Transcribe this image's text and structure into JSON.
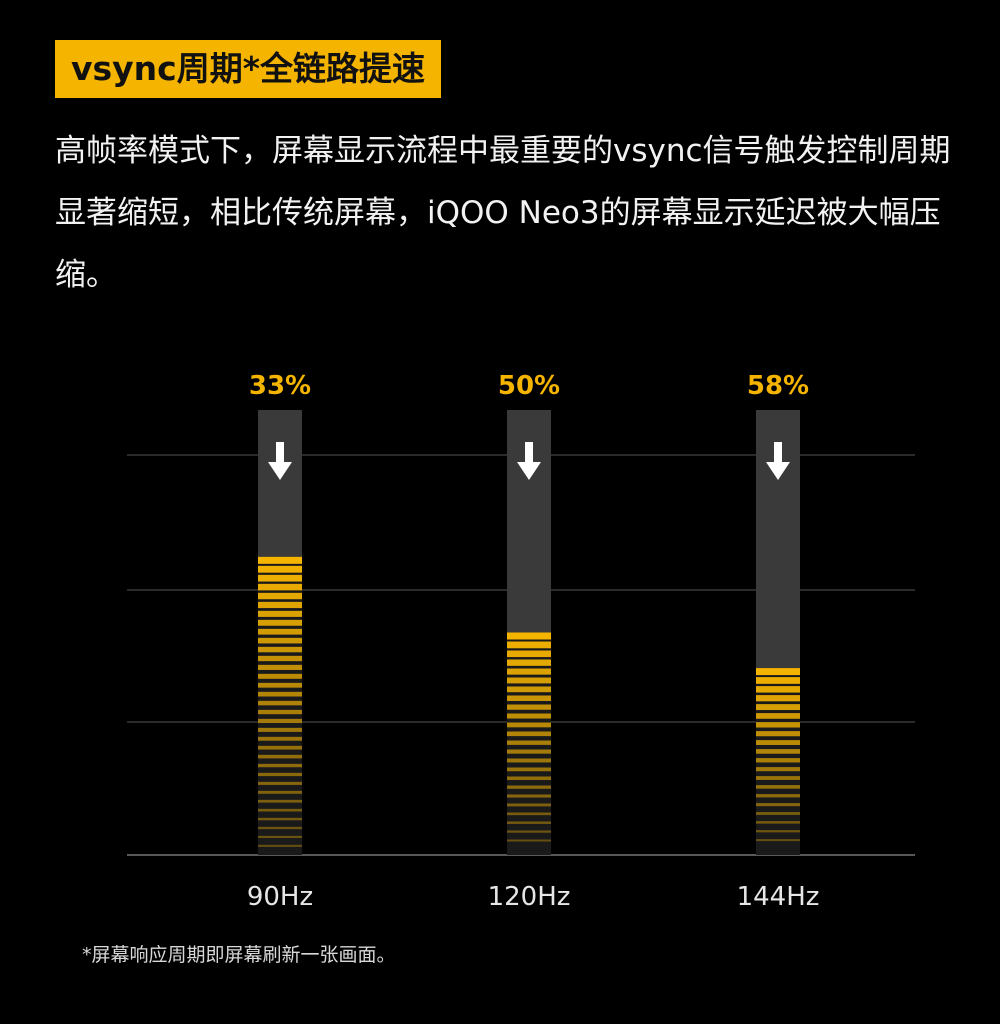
{
  "header": {
    "title": "vsync周期*全链路提速"
  },
  "intro": {
    "text": "高帧率模式下，屏幕显示流程中最重要的vsync信号触发控制周期显著缩短，相比传统屏幕，iQOO Neo3的屏幕显示延迟被大幅压缩。"
  },
  "footnote": {
    "text": "*屏幕响应周期即屏幕刷新一张画面。"
  },
  "colors": {
    "accent": "#f5b400",
    "bar_track": "#3a3a3a",
    "gridline": "#555555",
    "text": "#f2f2f2"
  },
  "icons": {
    "arrow": "arrow-down-icon"
  },
  "chart_data": {
    "type": "bar",
    "categories": [
      "90Hz",
      "120Hz",
      "144Hz"
    ],
    "values": [
      33,
      50,
      58
    ],
    "value_labels": [
      "33%",
      "50%",
      "58%"
    ],
    "unit": "%",
    "ylim": [
      0,
      100
    ],
    "grid": true,
    "title": "",
    "xlabel": "",
    "ylabel": ""
  }
}
